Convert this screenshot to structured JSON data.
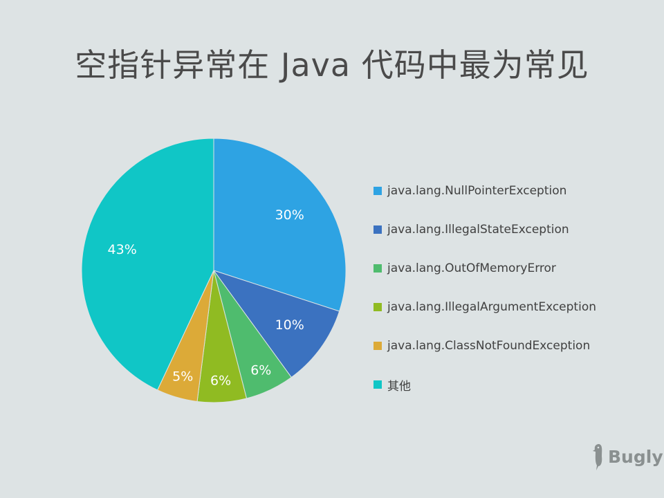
{
  "chart_data": {
    "type": "pie",
    "title": "空指针异常在 Java 代码中最为常见",
    "slices": [
      {
        "label": "java.lang.NullPointerException",
        "value": 30,
        "display": "30%",
        "color": "#2ea3e3"
      },
      {
        "label": "java.lang.IllegalStateException",
        "value": 10,
        "display": "10%",
        "color": "#3b72c0"
      },
      {
        "label": "java.lang.OutOfMemoryError",
        "value": 6,
        "display": "6%",
        "color": "#4fbc6e"
      },
      {
        "label": "java.lang.IllegalArgumentException",
        "value": 6,
        "display": "6%",
        "color": "#90bb22"
      },
      {
        "label": "java.lang.ClassNotFoundException",
        "value": 5,
        "display": "5%",
        "color": "#dcaa38"
      },
      {
        "label": "其他",
        "value": 43,
        "display": "43%",
        "color": "#10c6c6"
      }
    ],
    "legend_position": "right"
  },
  "brand": {
    "name": "Bugly",
    "icon": "woodpecker-icon"
  }
}
